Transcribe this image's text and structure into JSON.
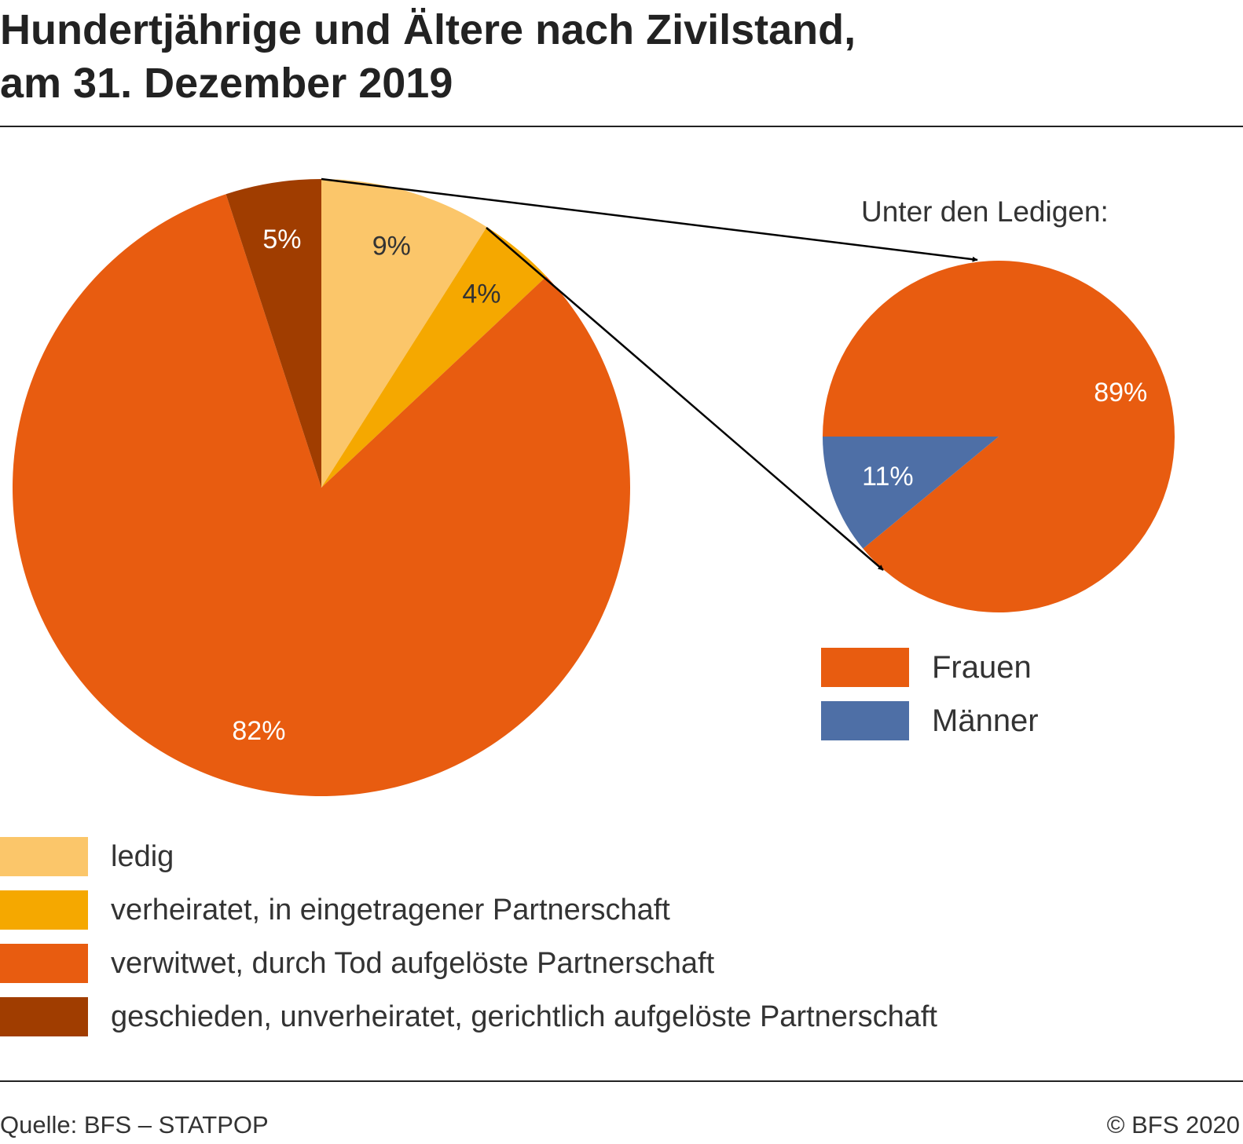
{
  "title_line1": "Hundertjährige und Ältere nach Zivilstand,",
  "title_line2": "am 31. Dezember 2019",
  "chart_data": [
    {
      "type": "pie",
      "categories": [
        "ledig",
        "verheiratet, in eingetragener Partnerschaft",
        "verwitwet, durch Tod aufgelöste Partnerschaft",
        "geschieden, unverheiratet, gerichtlich aufgelöste Partnerschaft"
      ],
      "values": [
        9,
        4,
        82,
        5
      ],
      "data_labels": [
        "9%",
        "4%",
        "82%",
        "5%"
      ],
      "colors": [
        "#fbc66a",
        "#f5a800",
        "#e85c10",
        "#a03d00"
      ],
      "label_colors": [
        "#333333",
        "#333333",
        "#ffffff",
        "#ffffff"
      ],
      "start": "top",
      "direction": "clockwise",
      "legend_position": "bottom"
    },
    {
      "type": "pie",
      "title": "Unter den Ledigen:",
      "categories": [
        "Frauen",
        "Männer"
      ],
      "values": [
        89,
        11
      ],
      "data_labels": [
        "89%",
        "11%"
      ],
      "colors": [
        "#e85c10",
        "#4e6fa6"
      ],
      "label_colors": [
        "#ffffff",
        "#ffffff"
      ],
      "start": "left",
      "direction": "clockwise",
      "legend_position": "bottom-right",
      "breakout_of": "ledig"
    }
  ],
  "footer": {
    "source": "Quelle: BFS – STATPOP",
    "copyright": "© BFS 2020"
  }
}
